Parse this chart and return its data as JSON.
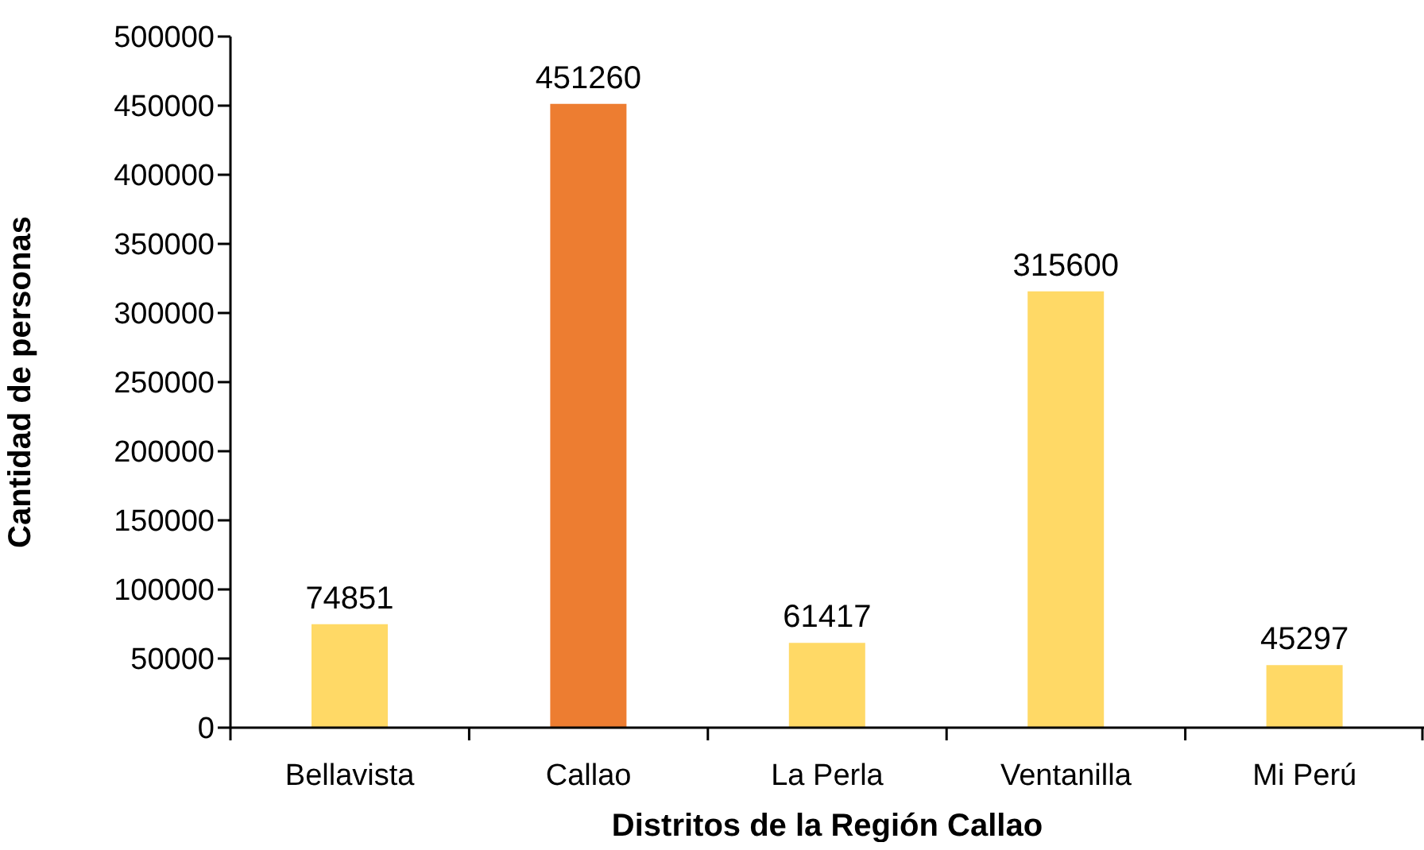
{
  "chart_data": {
    "type": "bar",
    "xlabel": "Distritos de la Región Callao",
    "ylabel": "Cantidad de personas",
    "categories": [
      "Bellavista",
      "Callao",
      "La Perla",
      "Ventanilla",
      "Mi Perú"
    ],
    "values": [
      74851,
      451260,
      61417,
      315600,
      45297
    ],
    "colors": [
      "#ffd966",
      "#ed7d31",
      "#ffd966",
      "#ffd966",
      "#ffd966"
    ],
    "ylim": [
      0,
      500000
    ],
    "yticks": [
      0,
      50000,
      100000,
      150000,
      200000,
      250000,
      300000,
      350000,
      400000,
      450000,
      500000
    ],
    "grid": false,
    "data_labels": true
  }
}
